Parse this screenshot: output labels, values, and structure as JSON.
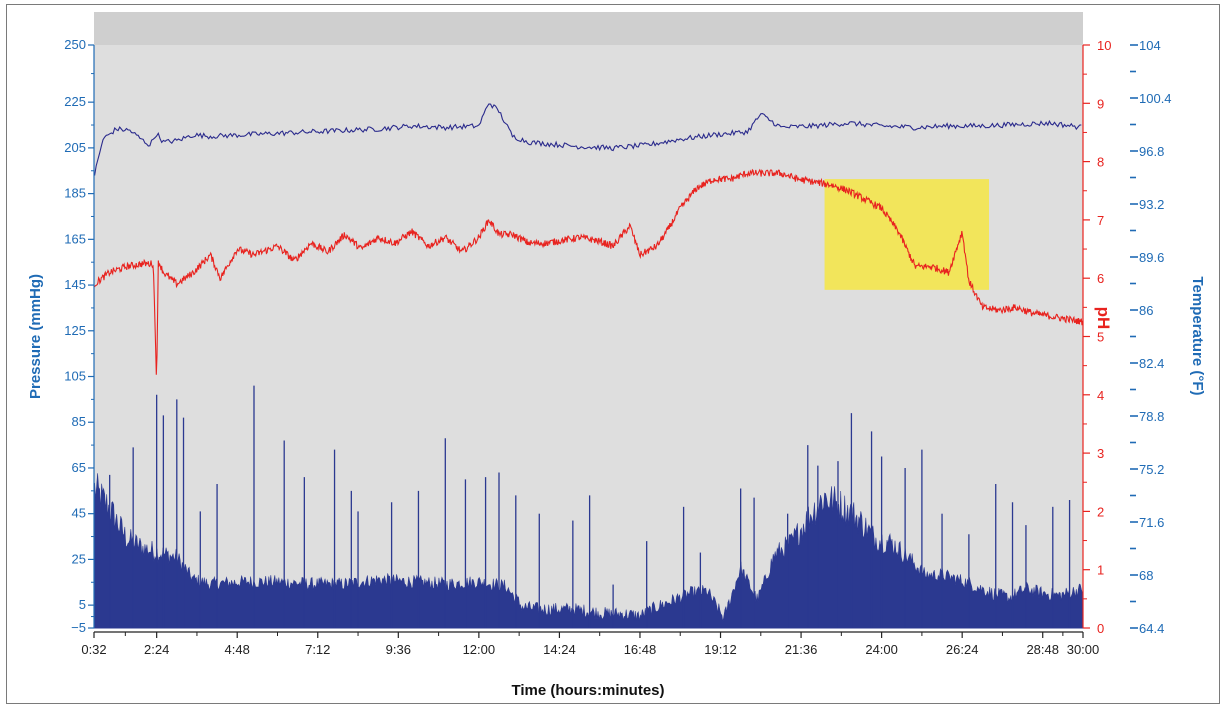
{
  "chart_data": {
    "type": "line",
    "title": "",
    "xlabel": "Time (hours:minutes)",
    "x_ticks": [
      "0:32",
      "2:24",
      "4:48",
      "7:12",
      "9:36",
      "12:00",
      "14:24",
      "16:48",
      "19:12",
      "21:36",
      "24:00",
      "26:24",
      "28:48",
      "30:00"
    ],
    "x_tick_values_h": [
      0.533,
      2.4,
      4.8,
      7.2,
      9.6,
      12.0,
      14.4,
      16.8,
      19.2,
      21.6,
      24.0,
      26.4,
      28.8,
      30.0
    ],
    "xlim_h": [
      0.533,
      30.0
    ],
    "axes": {
      "pressure": {
        "label": "Pressure (mmHg)",
        "color": "#1f6bb5",
        "ylim": [
          -5,
          250
        ],
        "ticks": [
          "250",
          "225",
          "205",
          "185",
          "165",
          "145",
          "125",
          "105",
          "85",
          "65",
          "45",
          "25",
          "5",
          "−5"
        ],
        "tick_values": [
          250,
          225,
          205,
          185,
          165,
          145,
          125,
          105,
          85,
          65,
          45,
          25,
          5,
          -5
        ]
      },
      "ph": {
        "label": "pH",
        "color": "#e8231f",
        "ylim": [
          0,
          10
        ],
        "ticks": [
          "10",
          "9",
          "8",
          "7",
          "6",
          "5",
          "4",
          "3",
          "2",
          "1",
          "0"
        ],
        "tick_values": [
          10,
          9,
          8,
          7,
          6,
          5,
          4,
          3,
          2,
          1,
          0
        ]
      },
      "temperature": {
        "label": "Temperature (°F)",
        "color": "#1f6bb5",
        "ylim": [
          64.4,
          104
        ],
        "ticks": [
          "104",
          "100.4",
          "96.8",
          "93.2",
          "89.6",
          "86",
          "82.4",
          "78.8",
          "75.2",
          "71.6",
          "68",
          "64.4"
        ],
        "tick_values": [
          104,
          100.4,
          96.8,
          93.2,
          89.6,
          86,
          82.4,
          78.8,
          75.2,
          71.6,
          68,
          64.4
        ]
      }
    },
    "series": [
      {
        "axis": "temperature",
        "color": "#2a2a8c",
        "x": [
          0.55,
          0.8,
          1.2,
          1.6,
          2.0,
          2.2,
          2.4,
          2.6,
          3.0,
          3.5,
          4.0,
          5.0,
          6.0,
          7.0,
          8.0,
          9.0,
          10.0,
          11.0,
          12.0,
          12.3,
          12.6,
          13.0,
          13.5,
          14.0,
          15.0,
          16.0,
          17.0,
          18.0,
          19.0,
          20.0,
          20.4,
          21.0,
          22.0,
          23.0,
          24.0,
          25.0,
          26.0,
          27.0,
          28.0,
          29.0,
          30.0
        ],
        "y": [
          95.2,
          97.6,
          98.3,
          98.2,
          97.5,
          97.2,
          98.0,
          97.4,
          97.5,
          97.9,
          97.8,
          97.9,
          98.0,
          98.1,
          98.2,
          98.3,
          98.5,
          98.4,
          98.5,
          100.1,
          99.5,
          97.8,
          97.4,
          97.3,
          97.1,
          97.0,
          97.2,
          97.6,
          97.9,
          98.1,
          99.3,
          98.4,
          98.5,
          98.7,
          98.5,
          98.4,
          98.5,
          98.5,
          98.6,
          98.7,
          98.4
        ]
      },
      {
        "axis": "ph",
        "color": "#e8231f",
        "x": [
          0.55,
          1.0,
          1.5,
          2.0,
          2.3,
          2.4,
          2.45,
          2.6,
          3.0,
          3.5,
          4.0,
          4.3,
          4.8,
          5.3,
          6.0,
          6.5,
          7.0,
          7.5,
          8.0,
          8.5,
          9.0,
          9.5,
          10.0,
          10.5,
          11.0,
          11.5,
          12.0,
          12.3,
          12.6,
          13.0,
          13.5,
          14.0,
          14.5,
          15.0,
          15.5,
          16.0,
          16.5,
          16.8,
          17.3,
          17.6,
          18.0,
          18.5,
          19.0,
          19.5,
          20.0,
          20.5,
          21.0,
          21.5,
          22.0,
          22.5,
          23.0,
          23.5,
          24.0,
          24.5,
          25.0,
          25.5,
          26.0,
          26.4,
          26.6,
          27.0,
          27.5,
          28.0,
          28.5,
          29.0,
          29.5,
          30.0
        ],
        "y": [
          5.9,
          6.1,
          6.2,
          6.25,
          6.25,
          4.2,
          6.3,
          6.1,
          5.9,
          6.1,
          6.4,
          6.0,
          6.5,
          6.4,
          6.55,
          6.3,
          6.6,
          6.45,
          6.75,
          6.5,
          6.7,
          6.6,
          6.8,
          6.55,
          6.7,
          6.45,
          6.7,
          7.0,
          6.75,
          6.75,
          6.6,
          6.6,
          6.65,
          6.7,
          6.65,
          6.55,
          6.9,
          6.4,
          6.55,
          6.8,
          7.2,
          7.55,
          7.7,
          7.7,
          7.8,
          7.8,
          7.8,
          7.7,
          7.65,
          7.6,
          7.5,
          7.35,
          7.2,
          6.8,
          6.2,
          6.2,
          6.1,
          6.8,
          5.95,
          5.5,
          5.45,
          5.5,
          5.4,
          5.35,
          5.3,
          5.25
        ]
      },
      {
        "axis": "pressure",
        "color": "#2b3990",
        "style": "filled-bars",
        "x": [
          0.55,
          1.0,
          1.5,
          2.0,
          2.5,
          3.0,
          3.5,
          4.0,
          5.0,
          6.0,
          7.0,
          8.0,
          9.0,
          10.0,
          11.0,
          12.0,
          12.8,
          13.3,
          13.8,
          14.3,
          14.8,
          15.3,
          15.8,
          16.3,
          16.8,
          17.3,
          17.8,
          18.3,
          18.8,
          19.3,
          19.8,
          20.3,
          20.8,
          21.3,
          21.8,
          22.3,
          22.8,
          23.3,
          23.8,
          24.3,
          24.8,
          25.3,
          25.8,
          26.3,
          26.8,
          27.3,
          27.8,
          28.3,
          28.8,
          29.3,
          30.0
        ],
        "y": [
          52,
          44,
          32,
          28,
          26,
          24,
          15,
          13,
          14,
          14,
          13,
          13,
          15,
          14,
          13,
          14,
          12,
          3,
          2,
          2,
          2,
          1,
          0,
          0,
          -1,
          3,
          6,
          9,
          10,
          -2,
          20,
          6,
          25,
          30,
          40,
          49,
          45,
          40,
          32,
          30,
          24,
          17,
          17,
          15,
          12,
          9,
          7,
          11,
          9,
          8,
          11
        ]
      }
    ],
    "spikes": {
      "x": [
        1.0,
        1.7,
        2.4,
        2.6,
        3.0,
        3.2,
        3.7,
        4.2,
        5.3,
        6.2,
        6.8,
        7.7,
        8.2,
        8.4,
        9.4,
        10.2,
        11.0,
        11.6,
        12.2,
        12.6,
        13.1,
        13.8,
        14.8,
        15.3,
        16.0,
        17.0,
        18.1,
        18.6,
        19.8,
        20.2,
        21.2,
        21.8,
        22.1,
        22.7,
        23.1,
        23.7,
        24.0,
        24.7,
        25.2,
        25.8,
        26.6,
        27.4,
        27.9,
        28.3,
        29.1,
        29.6
      ],
      "y": [
        62,
        74,
        97,
        88,
        95,
        87,
        46,
        58,
        101,
        77,
        61,
        73,
        55,
        46,
        50,
        55,
        78,
        60,
        61,
        63,
        53,
        45,
        42,
        53,
        14,
        33,
        48,
        28,
        56,
        52,
        45,
        75,
        66,
        68,
        89,
        81,
        70,
        65,
        73,
        45,
        36,
        58,
        50,
        40,
        48,
        51
      ]
    },
    "highlight_region": {
      "x": [
        22.3,
        27.2
      ],
      "ph": [
        5.8,
        7.7
      ],
      "color": "#f2e55b"
    }
  }
}
